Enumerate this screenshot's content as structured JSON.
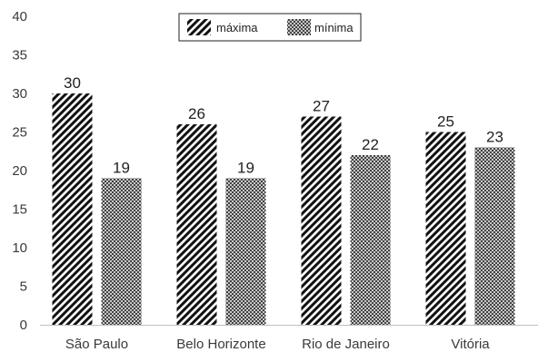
{
  "chart_data": {
    "type": "bar",
    "categories": [
      "São Paulo",
      "Belo Horizonte",
      "Rio de Janeiro",
      "Vitória"
    ],
    "series": [
      {
        "name": "máxima",
        "values": [
          30,
          26,
          27,
          25
        ],
        "pattern": "diagonal-stripes"
      },
      {
        "name": "mínima",
        "values": [
          19,
          19,
          22,
          23
        ],
        "pattern": "crosshatch"
      }
    ],
    "ylim": [
      0,
      40
    ],
    "yticks": [
      0,
      5,
      10,
      15,
      20,
      25,
      30,
      35,
      40
    ],
    "data_labels": true,
    "legend_position": "top-center",
    "grid": false,
    "title": "",
    "xlabel": "",
    "ylabel": ""
  },
  "colors": {
    "ink": "#111111",
    "axis": "#bfbfbf",
    "text": "#3a3a3a"
  }
}
